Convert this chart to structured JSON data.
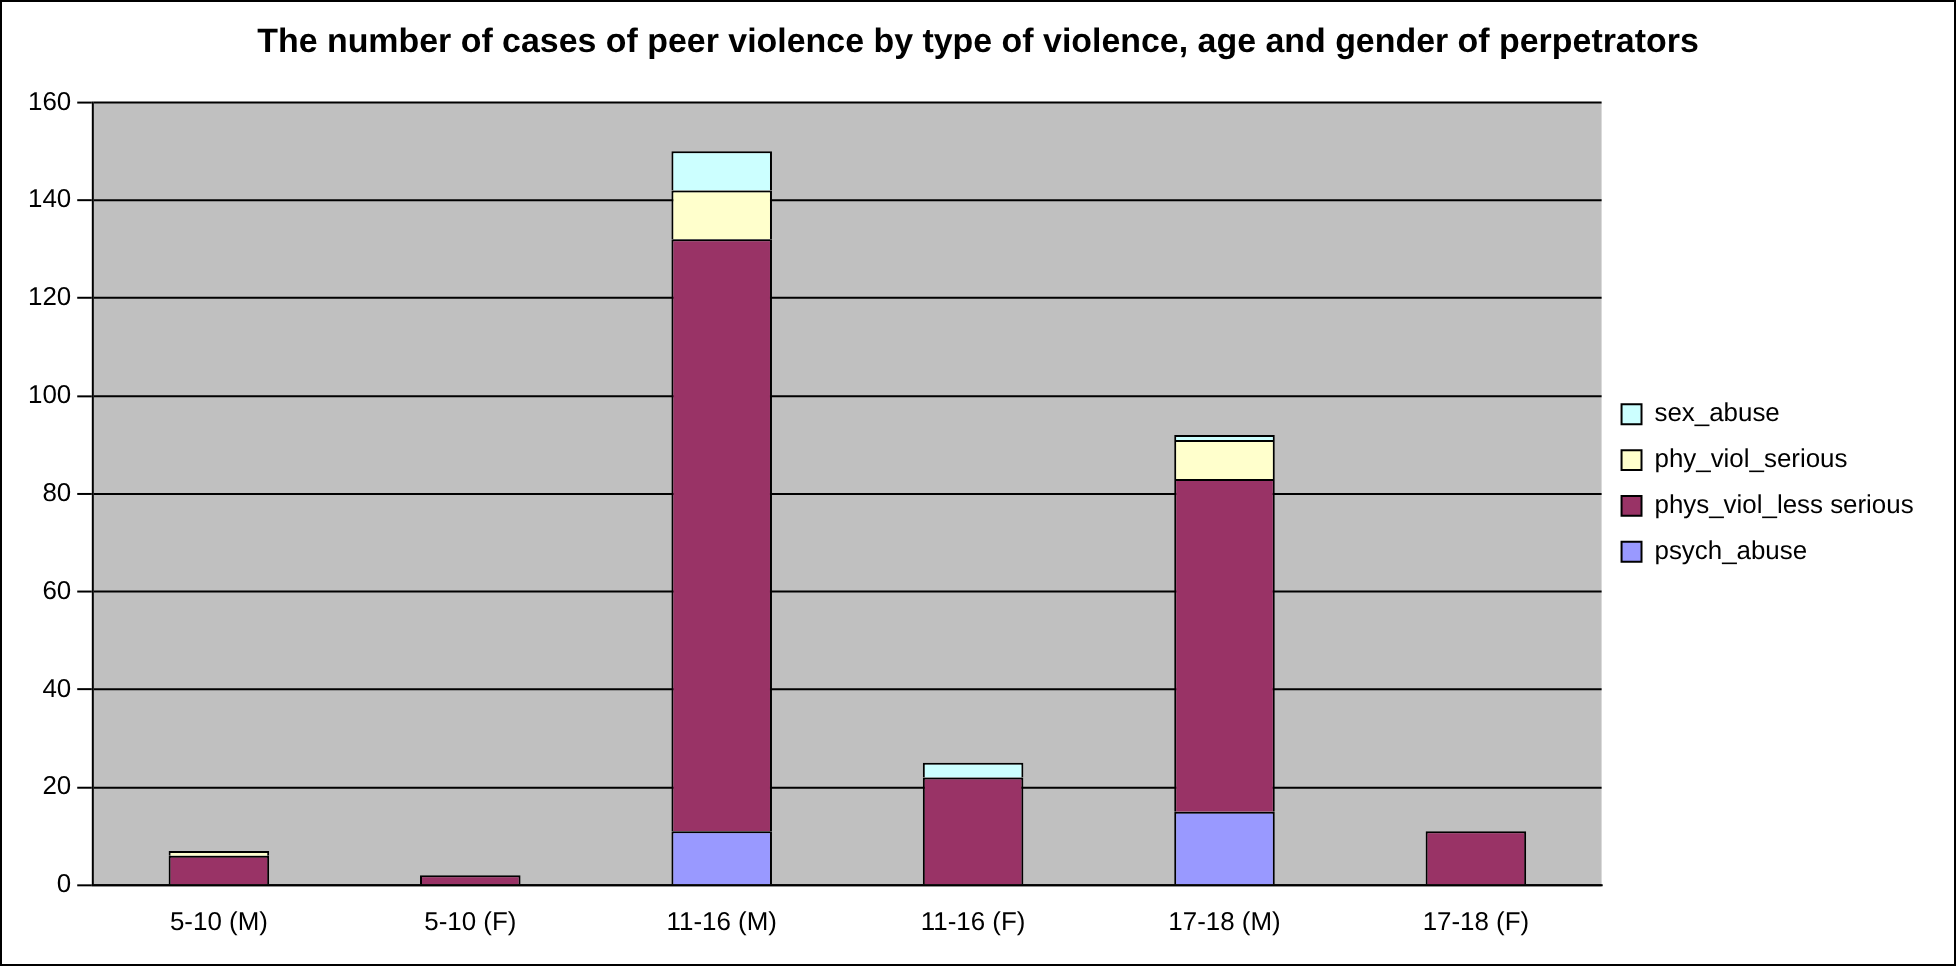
{
  "chart_data": {
    "type": "bar",
    "title": "The number of cases of peer violence by type of violence, age and gender of perpetrators",
    "categories": [
      "5-10 (M)",
      "5-10 (F)",
      "11-16 (M)",
      "11-16 (F)",
      "17-18 (M)",
      "17-18 (F)"
    ],
    "stacked": true,
    "series": [
      {
        "name": "psych_abuse",
        "color": "#9999ff",
        "values": [
          0,
          0,
          11,
          0,
          15,
          0
        ]
      },
      {
        "name": "phys_viol_less serious",
        "color": "#993366",
        "values": [
          6,
          2,
          121,
          22,
          68,
          11
        ]
      },
      {
        "name": "phy_viol_serious",
        "color": "#ffffcc",
        "values": [
          1,
          0,
          10,
          0,
          8,
          0
        ]
      },
      {
        "name": "sex_abuse",
        "color": "#ccffff",
        "values": [
          0,
          0,
          8,
          3,
          1,
          0
        ]
      }
    ],
    "ylim": [
      0,
      160
    ],
    "yticks": [
      0,
      20,
      40,
      60,
      80,
      100,
      120,
      140,
      160
    ],
    "grid": "y",
    "legend": "right"
  }
}
